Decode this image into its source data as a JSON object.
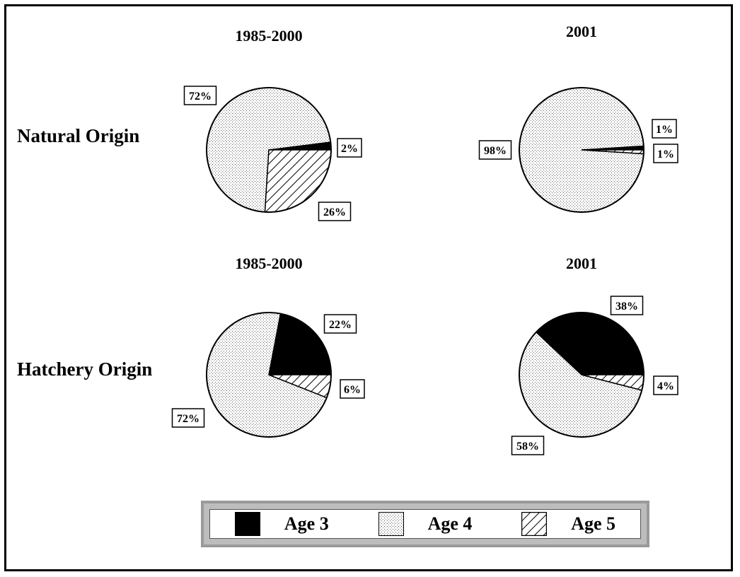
{
  "row_labels": {
    "natural": "Natural Origin",
    "hatchery": "Hatchery Origin"
  },
  "legend": {
    "items": [
      {
        "label": "Age 3",
        "pattern": "solid-black"
      },
      {
        "label": "Age 4",
        "pattern": "dotted"
      },
      {
        "label": "Age 5",
        "pattern": "diagonal-hatch"
      }
    ]
  },
  "colors": {
    "age3": "#000000",
    "age4_dots": "#555555",
    "background": "#ffffff",
    "legend_frame": "#bdbdbd"
  },
  "chart_data": [
    {
      "type": "pie",
      "group": "Natural Origin",
      "title": "1985-2000",
      "categories": [
        "Age 3",
        "Age 4",
        "Age 5"
      ],
      "values": [
        2,
        72,
        26
      ],
      "labels": [
        "2%",
        "72%",
        "26%"
      ]
    },
    {
      "type": "pie",
      "group": "Natural Origin",
      "title": "2001",
      "categories": [
        "Age 3",
        "Age 4",
        "Age 5"
      ],
      "values": [
        1,
        98,
        1
      ],
      "labels": [
        "1%",
        "98%",
        "1%"
      ]
    },
    {
      "type": "pie",
      "group": "Hatchery Origin",
      "title": "1985-2000",
      "categories": [
        "Age 3",
        "Age 4",
        "Age 5"
      ],
      "values": [
        22,
        72,
        6
      ],
      "labels": [
        "22%",
        "72%",
        "6%"
      ]
    },
    {
      "type": "pie",
      "group": "Hatchery Origin",
      "title": "2001",
      "categories": [
        "Age 3",
        "Age 4",
        "Age 5"
      ],
      "values": [
        38,
        58,
        4
      ],
      "labels": [
        "38%",
        "58%",
        "4%"
      ]
    }
  ]
}
